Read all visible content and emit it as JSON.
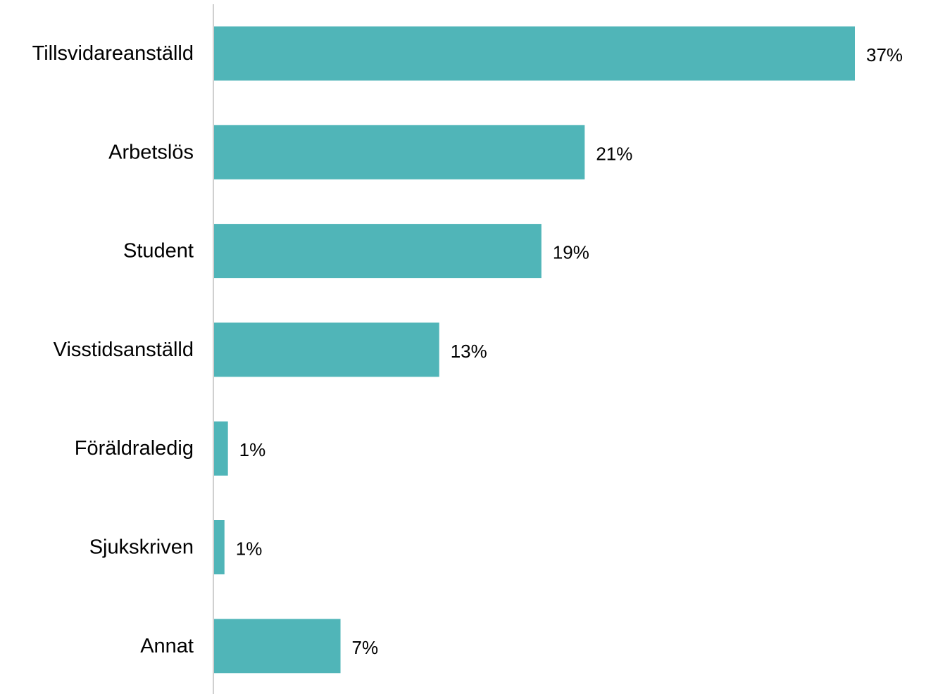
{
  "chart_data": {
    "type": "bar",
    "orientation": "horizontal",
    "categories": [
      "Tillsvidareanställd",
      "Arbetslös",
      "Student",
      "Visstidsanställd",
      "Föräldraledig",
      "Sjukskriven",
      "Annat"
    ],
    "values": [
      37,
      21,
      19,
      13,
      1,
      1,
      7
    ],
    "precise_values": [
      37,
      21.4,
      18.9,
      13,
      0.8,
      0.6,
      7.3
    ],
    "value_labels": [
      "37%",
      "21%",
      "19%",
      "13%",
      "1%",
      "1%",
      "7%"
    ],
    "unit": "%",
    "xlim": [
      0,
      37
    ],
    "grid": false,
    "legend": "none",
    "title": "",
    "xlabel": "",
    "ylabel": "",
    "colors": {
      "bar": "#50b5b8",
      "axis": "#d0d0d0",
      "text": "#000000"
    }
  }
}
